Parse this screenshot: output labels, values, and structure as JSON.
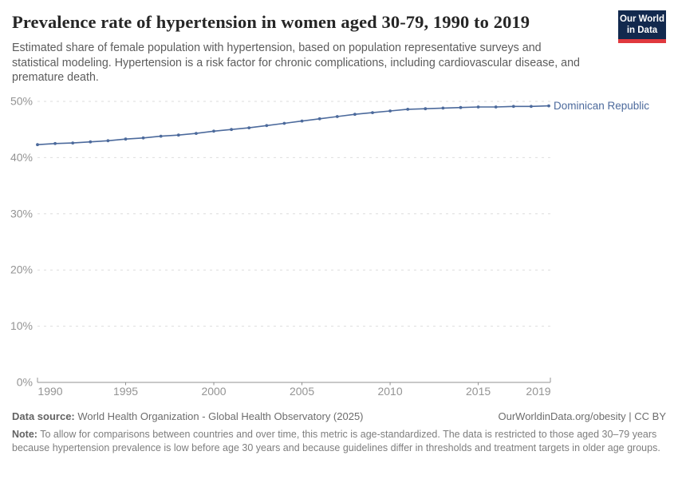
{
  "header": {
    "title": "Prevalence rate of hypertension in women aged 30-79, 1990 to 2019",
    "subtitle": "Estimated share of female population with hypertension, based on population representative surveys and statistical modeling. Hypertension is a risk factor for chronic complications, including cardiovascular disease, and premature death.",
    "logo": {
      "line1": "Our World",
      "line2": "in Data",
      "bg_color": "#12294e",
      "stripe_color": "#e0393e"
    }
  },
  "chart_data": {
    "type": "line",
    "title": "Prevalence rate of hypertension in women aged 30-79, 1990 to 2019",
    "xlabel": "",
    "ylabel": "",
    "xlim": [
      1990,
      2019
    ],
    "ylim": [
      0,
      50
    ],
    "grid": "horizontal-dashed",
    "legend_position": "end-of-line-label",
    "x_ticks": [
      1990,
      1995,
      2000,
      2005,
      2010,
      2015,
      2019
    ],
    "y_ticks": [
      0,
      10,
      20,
      30,
      40,
      50
    ],
    "y_tick_suffix": "%",
    "series": [
      {
        "name": "Dominican Republic",
        "color": "#4C6A9C",
        "x": [
          1990,
          1991,
          1992,
          1993,
          1994,
          1995,
          1996,
          1997,
          1998,
          1999,
          2000,
          2001,
          2002,
          2003,
          2004,
          2005,
          2006,
          2007,
          2008,
          2009,
          2010,
          2011,
          2012,
          2013,
          2014,
          2015,
          2016,
          2017,
          2018,
          2019
        ],
        "values": [
          42.3,
          42.5,
          42.6,
          42.8,
          43.0,
          43.3,
          43.5,
          43.8,
          44.0,
          44.3,
          44.7,
          45.0,
          45.3,
          45.7,
          46.1,
          46.5,
          46.9,
          47.3,
          47.7,
          48.0,
          48.3,
          48.6,
          48.7,
          48.8,
          48.9,
          49.0,
          49.0,
          49.1,
          49.1,
          49.2
        ]
      }
    ]
  },
  "footer": {
    "datasource_label": "Data source:",
    "datasource_text": " World Health Organization - Global Health Observatory (2025)",
    "rights": "OurWorldinData.org/obesity | CC BY",
    "note_label": "Note:",
    "note_text": " To allow for comparisons between countries and over time, this metric is age-standardized. The data is restricted to those aged 30–79 years because hypertension prevalence is low before age 30 years and because guidelines differ in thresholds and treatment targets in older age groups."
  },
  "colors": {
    "line": "#4C6A9C",
    "tick_text": "#949494",
    "gridline": "#dedede",
    "axis": "#a6a6a6"
  }
}
